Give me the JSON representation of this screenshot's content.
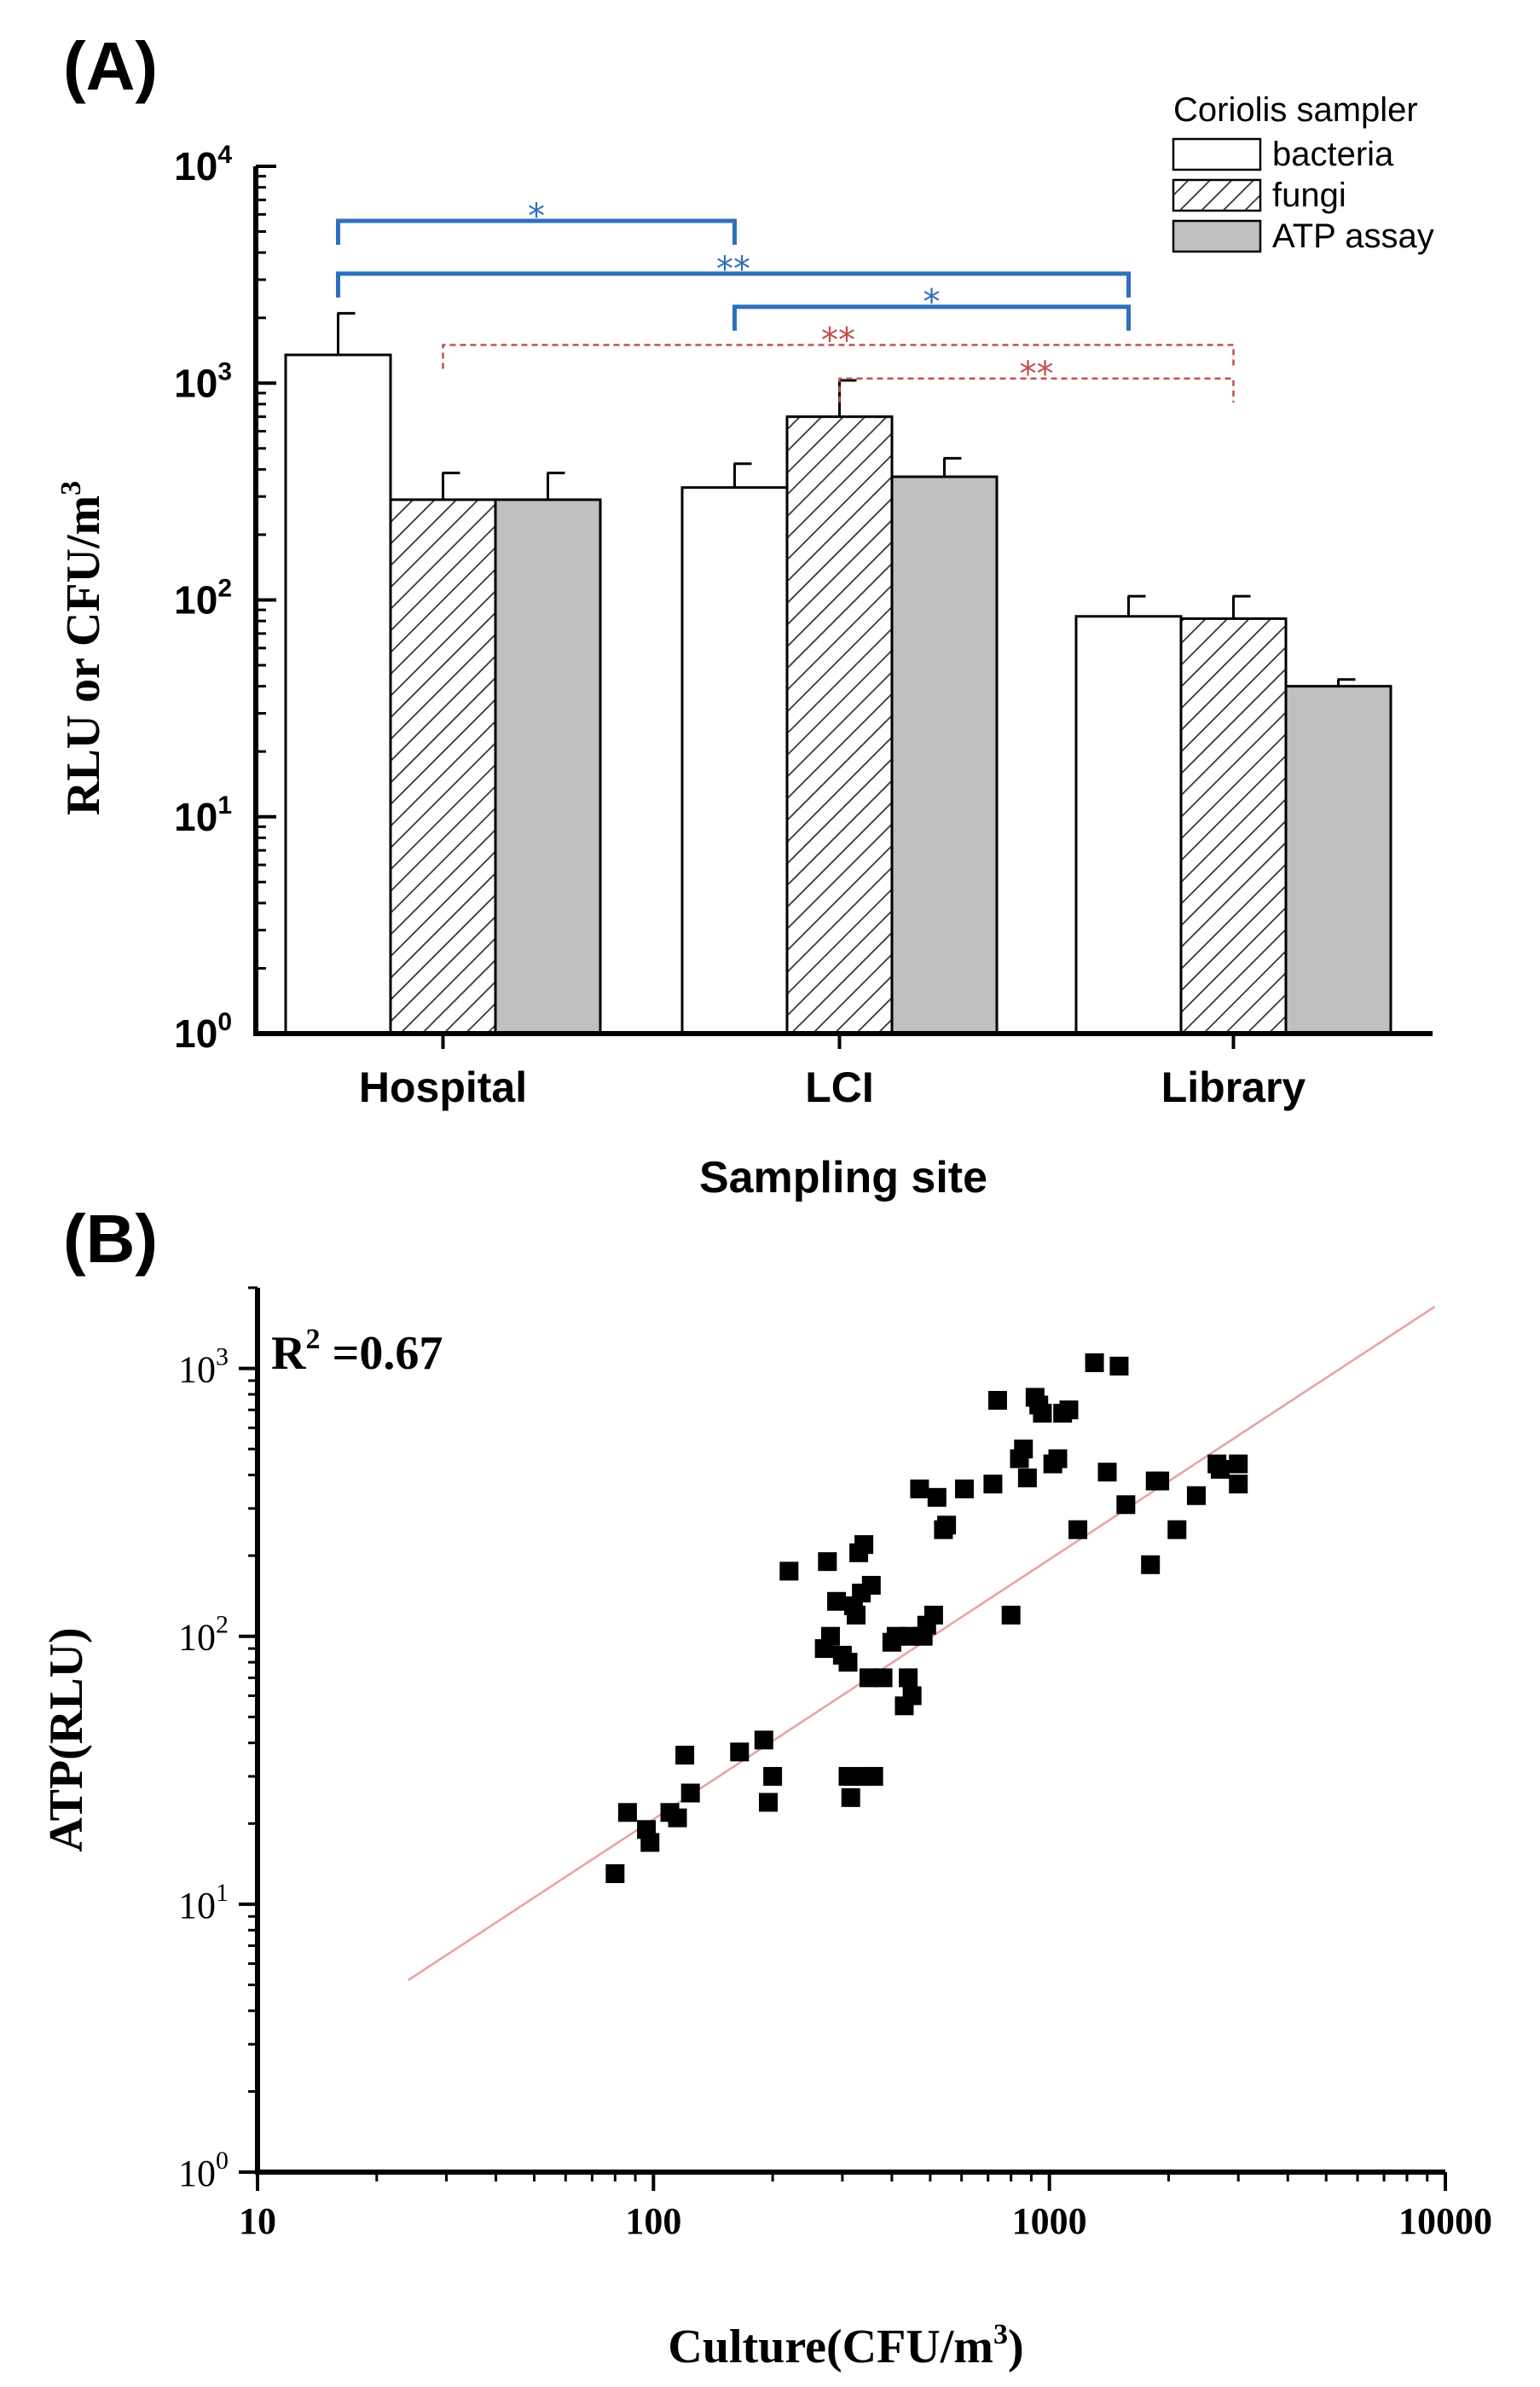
{
  "panel_a_label": "(A)",
  "panel_b_label": "(B)",
  "colors": {
    "axis": "#000000",
    "bar_stroke": "#000000",
    "bacteria_fill": "#ffffff",
    "fungi_hatch": "#333333",
    "atp_fill": "#c0c0c0",
    "sig_blue": "#2f6fbf",
    "sig_red": "#c0504d",
    "fit_line": "#e8a0a0",
    "marker": "#000000"
  },
  "chart_data": [
    {
      "type": "bar",
      "y_scale": "log",
      "ylim": [
        1,
        10000
      ],
      "y_ticks": [
        {
          "value": 1,
          "base": "10",
          "exp": "0"
        },
        {
          "value": 10,
          "base": "10",
          "exp": "1"
        },
        {
          "value": 100,
          "base": "10",
          "exp": "2"
        },
        {
          "value": 1000,
          "base": "10",
          "exp": "3"
        },
        {
          "value": 10000,
          "base": "10",
          "exp": "4"
        }
      ],
      "ylabel": "RLU or CFU/m",
      "ylabel_sup": "3",
      "xlabel": "Sampling site",
      "categories": [
        "Hospital",
        "LCI",
        "Library"
      ],
      "legend_title": "Coriolis sampler",
      "series": [
        {
          "name": "bacteria",
          "style": "white",
          "values": [
            1350,
            330,
            84
          ],
          "errors": [
            750,
            95,
            20
          ]
        },
        {
          "name": "fungi",
          "style": "hatch",
          "values": [
            290,
            700,
            82
          ],
          "errors": [
            95,
            330,
            22
          ]
        },
        {
          "name": "ATP assay",
          "style": "gray",
          "values": [
            290,
            370,
            40
          ],
          "errors": [
            95,
            80,
            3
          ]
        }
      ],
      "significance": [
        {
          "from": {
            "group": 0,
            "series": 0
          },
          "to": {
            "group": 1,
            "series": 0
          },
          "level": 5600,
          "label": "*",
          "color": "blue",
          "dashed": false
        },
        {
          "from": {
            "group": 0,
            "series": 0
          },
          "to": {
            "group": 2,
            "series": 0
          },
          "level": 3200,
          "label": "**",
          "color": "blue",
          "dashed": false
        },
        {
          "from": {
            "group": 1,
            "series": 0
          },
          "to": {
            "group": 2,
            "series": 0
          },
          "level": 2250,
          "label": "*",
          "color": "blue",
          "dashed": false
        },
        {
          "from": {
            "group": 0,
            "series": 1
          },
          "to": {
            "group": 2,
            "series": 1
          },
          "level": 1500,
          "label": "**",
          "color": "red",
          "dashed": true
        },
        {
          "from": {
            "group": 1,
            "series": 1
          },
          "to": {
            "group": 2,
            "series": 1
          },
          "level": 1050,
          "label": "**",
          "color": "red",
          "dashed": true
        }
      ]
    },
    {
      "type": "scatter",
      "x_scale": "log",
      "y_scale": "log",
      "xlim": [
        10,
        10000
      ],
      "ylim": [
        1,
        2000
      ],
      "x_ticks": [
        {
          "value": 10,
          "label": "10"
        },
        {
          "value": 100,
          "label": "100"
        },
        {
          "value": 1000,
          "label": "1000"
        },
        {
          "value": 10000,
          "label": "10000"
        }
      ],
      "y_ticks": [
        {
          "value": 1,
          "base": "10",
          "exp": "0"
        },
        {
          "value": 10,
          "base": "10",
          "exp": "1"
        },
        {
          "value": 100,
          "base": "10",
          "exp": "2"
        },
        {
          "value": 1000,
          "base": "10",
          "exp": "3"
        }
      ],
      "xlabel": "Culture(CFU/m",
      "xlabel_sup": "3",
      "xlabel_end": ")",
      "ylabel": "ATP(RLU)",
      "annotation_base": "R",
      "annotation_sup": "2",
      "annotation_text": " =0.67",
      "fit_line": {
        "x": [
          24,
          9400
        ],
        "y": [
          5.2,
          1700
        ]
      },
      "points": [
        [
          80,
          13
        ],
        [
          86,
          22
        ],
        [
          96,
          19
        ],
        [
          98,
          17
        ],
        [
          110,
          22
        ],
        [
          115,
          21
        ],
        [
          120,
          36
        ],
        [
          124,
          26
        ],
        [
          165,
          37
        ],
        [
          190,
          41
        ],
        [
          195,
          24
        ],
        [
          200,
          30
        ],
        [
          220,
          175
        ],
        [
          270,
          90
        ],
        [
          275,
          190
        ],
        [
          280,
          100
        ],
        [
          290,
          135
        ],
        [
          300,
          85
        ],
        [
          310,
          30
        ],
        [
          310,
          80
        ],
        [
          315,
          25
        ],
        [
          320,
          130
        ],
        [
          325,
          120
        ],
        [
          330,
          205
        ],
        [
          335,
          145
        ],
        [
          340,
          220
        ],
        [
          345,
          30
        ],
        [
          350,
          70
        ],
        [
          355,
          155
        ],
        [
          360,
          30
        ],
        [
          380,
          70
        ],
        [
          400,
          95
        ],
        [
          410,
          100
        ],
        [
          430,
          55
        ],
        [
          440,
          70
        ],
        [
          445,
          100
        ],
        [
          450,
          60
        ],
        [
          470,
          355
        ],
        [
          480,
          100
        ],
        [
          490,
          110
        ],
        [
          510,
          120
        ],
        [
          520,
          330
        ],
        [
          540,
          250
        ],
        [
          550,
          260
        ],
        [
          610,
          355
        ],
        [
          720,
          370
        ],
        [
          740,
          760
        ],
        [
          800,
          120
        ],
        [
          840,
          460
        ],
        [
          860,
          500
        ],
        [
          880,
          390
        ],
        [
          920,
          780
        ],
        [
          940,
          730
        ],
        [
          960,
          680
        ],
        [
          1020,
          440
        ],
        [
          1050,
          460
        ],
        [
          1080,
          680
        ],
        [
          1120,
          700
        ],
        [
          1180,
          250
        ],
        [
          1300,
          1050
        ],
        [
          1400,
          410
        ],
        [
          1500,
          1020
        ],
        [
          1560,
          310
        ],
        [
          1800,
          185
        ],
        [
          1850,
          380
        ],
        [
          1900,
          380
        ],
        [
          2100,
          250
        ],
        [
          2350,
          335
        ],
        [
          2650,
          440
        ],
        [
          2700,
          420
        ],
        [
          3000,
          440
        ],
        [
          3000,
          370
        ]
      ]
    }
  ]
}
